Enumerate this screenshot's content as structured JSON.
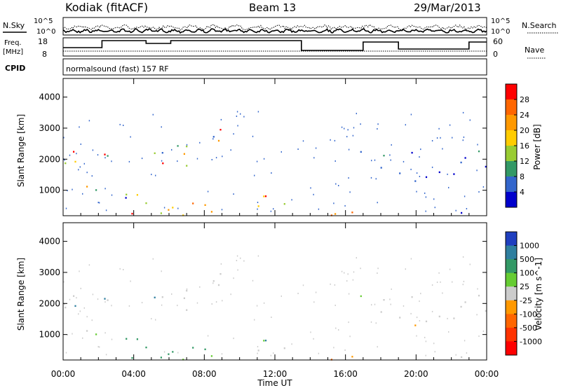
{
  "header": {
    "station": "Kodiak (fitACF)",
    "beam": "Beam 13",
    "date": "29/Mar/2013"
  },
  "strip_panels": {
    "nsky_label": "N.Sky",
    "nsearch_label": "N.Search",
    "noise_ticks": [
      "10^5",
      "10^0"
    ],
    "freq_label": "Freq.",
    "freq_unit": "[MHz]",
    "freq_ticks": [
      "18",
      "8"
    ],
    "nave_label": "Nave",
    "nave_ticks": [
      "60",
      "0"
    ],
    "cpid_label": "CPID",
    "cpid_text": "normalsound (fast) 157 RF"
  },
  "chart_data": [
    {
      "type": "heatmap",
      "title": "",
      "quantity": "Power",
      "xlabel": "",
      "ylabel": "Slant Range [km]",
      "colorbar_label": "Power [dB]",
      "colorbar_ticks": [
        "28",
        "24",
        "20",
        "16",
        "12",
        "8",
        "4"
      ],
      "colorbar_values": [
        28,
        24,
        20,
        16,
        12,
        8,
        4
      ],
      "colorbar_colors": [
        "#ff0000",
        "#ff6600",
        "#ff9900",
        "#ffcc00",
        "#99cc33",
        "#339966",
        "#3366cc",
        "#0000cc"
      ],
      "yticks": [
        "4000",
        "3000",
        "2000",
        "1000"
      ],
      "yvalues": [
        4000,
        3000,
        2000,
        1000
      ],
      "xlim_hours": [
        0,
        24
      ],
      "ylim_km": [
        180,
        4600
      ]
    },
    {
      "type": "heatmap",
      "title": "",
      "quantity": "Velocity",
      "xlabel": "Time UT",
      "ylabel": "Slant Range [km]",
      "colorbar_label": "Velocity [m s^-1]",
      "colorbar_ticks": [
        "1000",
        "500",
        "100",
        "25",
        "-25",
        "-100",
        "-500",
        "-1000"
      ],
      "colorbar_values": [
        1000,
        500,
        100,
        25,
        -25,
        -100,
        -500,
        -1000
      ],
      "colorbar_colors": [
        "#1f3fbf",
        "#2f7f9f",
        "#339966",
        "#66cc33",
        "#cccccc",
        "#ff9900",
        "#ff6600",
        "#ff3300",
        "#ff0000"
      ],
      "yticks": [
        "4000",
        "3000",
        "2000",
        "1000"
      ],
      "yvalues": [
        4000,
        3000,
        2000,
        1000
      ],
      "xticks": [
        "00:00",
        "04:00",
        "08:00",
        "12:00",
        "16:00",
        "20:00",
        "00:00"
      ],
      "xvalues_hours": [
        0,
        4,
        8,
        12,
        16,
        20,
        24
      ],
      "xlim_hours": [
        0,
        24
      ],
      "ylim_km": [
        180,
        4600
      ]
    }
  ]
}
